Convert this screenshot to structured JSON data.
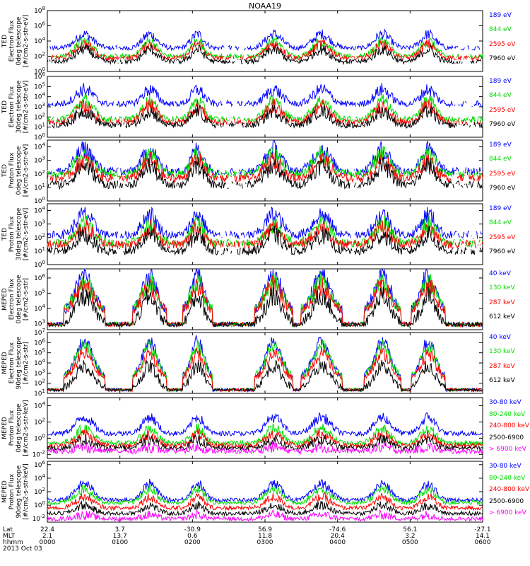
{
  "title": "NOAA19",
  "colors": {
    "black": "#000000",
    "red": "#ff0000",
    "green": "#00dd00",
    "blue": "#0000ff",
    "magenta": "#ff00ff"
  },
  "chart_data": {
    "type": "line",
    "x_time_labels": [
      "0000",
      "0100",
      "0200",
      "0300",
      "0400",
      "0500",
      "0600"
    ],
    "panels": [
      {
        "id": "ted-e-0",
        "ylabel": [
          "TED",
          "Electron Flux",
          "0deg telescope",
          "[#/cm2-s-str-eV]"
        ],
        "yticks": [
          "10^0",
          "10^2",
          "10^4",
          "10^6",
          "10^8"
        ],
        "ymin_exp": 0,
        "ymax_exp": 8,
        "series": [
          {
            "name": "7960 eV",
            "color": "black",
            "level": 1.3,
            "spread": 1.6
          },
          {
            "name": "2595 eV",
            "color": "red",
            "level": 1.8,
            "spread": 1.8
          },
          {
            "name": "844 eV",
            "color": "green",
            "level": 2.0,
            "spread": 2.0
          },
          {
            "name": "189 eV",
            "color": "blue",
            "level": 3.1,
            "spread": 1.8
          }
        ]
      },
      {
        "id": "ted-e-30",
        "ylabel": [
          "TED",
          "Electron Flux",
          "30deg telescope",
          "[#/cm2-s-str-eV]"
        ],
        "yticks": [
          "10^0",
          "10^1",
          "10^2",
          "10^3",
          "10^4",
          "10^5",
          "10^6"
        ],
        "ymin_exp": 0,
        "ymax_exp": 6,
        "series": [
          {
            "name": "7960 eV",
            "color": "black",
            "level": 1.2,
            "spread": 1.4
          },
          {
            "name": "2595 eV",
            "color": "red",
            "level": 1.5,
            "spread": 1.6
          },
          {
            "name": "844 eV",
            "color": "green",
            "level": 1.8,
            "spread": 1.8
          },
          {
            "name": "189 eV",
            "color": "blue",
            "level": 3.3,
            "spread": 1.4
          }
        ]
      },
      {
        "id": "ted-p-0",
        "ylabel": [
          "TED",
          "Proton Flux",
          "0deg telescope",
          "[#/cm2-s-str-eV]"
        ],
        "yticks": [
          "10^0",
          "10^1",
          "10^2",
          "10^3",
          "10^4"
        ],
        "ymin_exp": 0,
        "ymax_exp": 4.5,
        "series": [
          {
            "name": "7960 eV",
            "color": "black",
            "level": 1.2,
            "spread": 1.4
          },
          {
            "name": "2595 eV",
            "color": "red",
            "level": 1.7,
            "spread": 1.3
          },
          {
            "name": "844 eV",
            "color": "green",
            "level": 2.0,
            "spread": 1.4
          },
          {
            "name": "189 eV",
            "color": "blue",
            "level": 2.2,
            "spread": 1.6
          }
        ]
      },
      {
        "id": "ted-p-30",
        "ylabel": [
          "TED",
          "Proton Flux",
          "30deg telescope",
          "[#/cm2-s-str-eV]"
        ],
        "yticks": [
          "10^0",
          "10^1",
          "10^2",
          "10^3",
          "10^4"
        ],
        "ymin_exp": 0,
        "ymax_exp": 4.5,
        "series": [
          {
            "name": "7960 eV",
            "color": "black",
            "level": 1.0,
            "spread": 1.2
          },
          {
            "name": "2595 eV",
            "color": "red",
            "level": 1.5,
            "spread": 1.2
          },
          {
            "name": "844 eV",
            "color": "green",
            "level": 1.6,
            "spread": 1.4
          },
          {
            "name": "189 eV",
            "color": "blue",
            "level": 2.2,
            "spread": 1.5
          }
        ]
      },
      {
        "id": "meped-e-0",
        "ylabel": [
          "MEPED",
          "Electron Flux",
          "0deg telescope",
          "[#/cm2-s-str]"
        ],
        "yticks": [
          "10^3",
          "10^4",
          "10^5",
          "10^6"
        ],
        "ymin_exp": 2.6,
        "ymax_exp": 6.6,
        "series": [
          {
            "name": "612 keV",
            "color": "black",
            "level": 3.0,
            "spread": 1.8
          },
          {
            "name": "287 keV",
            "color": "red",
            "level": 3.8,
            "spread": 1.7
          },
          {
            "name": "130 keV",
            "color": "green",
            "level": 3.9,
            "spread": 1.8
          },
          {
            "name": "40 keV",
            "color": "blue",
            "level": 3.8,
            "spread": 2.4
          }
        ]
      },
      {
        "id": "meped-e-90",
        "ylabel": [
          "MEPED",
          "Electron Flux",
          "90deg telescope",
          "[#/cm2-s-str]"
        ],
        "yticks": [
          "10^1",
          "10^2",
          "10^3",
          "10^4",
          "10^5",
          "10^6",
          "10^7"
        ],
        "ymin_exp": 1,
        "ymax_exp": 7,
        "series": [
          {
            "name": "612 keV",
            "color": "black",
            "level": 1.5,
            "spread": 2.2
          },
          {
            "name": "287 keV",
            "color": "red",
            "level": 2.4,
            "spread": 2.5
          },
          {
            "name": "130 keV",
            "color": "green",
            "level": 2.6,
            "spread": 3.0
          },
          {
            "name": "40 keV",
            "color": "blue",
            "level": 2.6,
            "spread": 3.5
          }
        ]
      },
      {
        "id": "meped-p-0",
        "ylabel": [
          "MEPED",
          "Proton Flux",
          "0deg telescope",
          "[#/cm2-s-str-keV]"
        ],
        "yticks": [
          "10^-2",
          "10^0",
          "10^2",
          "10^4"
        ],
        "ymin_exp": -2.5,
        "ymax_exp": 5,
        "series": [
          {
            "name": "> 6900 keV",
            "color": "magenta",
            "level": -1.6,
            "spread": 0.5
          },
          {
            "name": "2500-6900",
            "color": "black",
            "level": -1.2,
            "spread": 1.0
          },
          {
            "name": "240-800 keV",
            "color": "red",
            "level": -0.9,
            "spread": 1.4
          },
          {
            "name": "80-240 keV",
            "color": "green",
            "level": -0.6,
            "spread": 1.8
          },
          {
            "name": "30-80 keV",
            "color": "blue",
            "level": 0.6,
            "spread": 2.0
          }
        ]
      },
      {
        "id": "meped-p-90",
        "ylabel": [
          "MEPED",
          "Proton Flux",
          "90deg telescope",
          "[#/cm2-s-str-keV]"
        ],
        "yticks": [
          "10^-2",
          "10^0",
          "10^2",
          "10^4",
          "10^6"
        ],
        "ymin_exp": -2.5,
        "ymax_exp": 6.5,
        "series": [
          {
            "name": "> 6900 keV",
            "color": "magenta",
            "level": -2.0,
            "spread": 0.6
          },
          {
            "name": "2500-6900",
            "color": "black",
            "level": -1.2,
            "spread": 1.2
          },
          {
            "name": "240-800 keV",
            "color": "red",
            "level": -0.4,
            "spread": 1.6
          },
          {
            "name": "80-240 keV",
            "color": "green",
            "level": 0.4,
            "spread": 2.0
          },
          {
            "name": "30-80 keV",
            "color": "blue",
            "level": 0.8,
            "spread": 2.4
          }
        ]
      }
    ],
    "footer_rows": [
      {
        "label": "Lat",
        "values": [
          "22.4",
          "3.7",
          "-30.9",
          "56.9",
          "-74.6",
          "56.1",
          "-27.1"
        ]
      },
      {
        "label": "MLT",
        "values": [
          "2.1",
          "13.7",
          "0.6",
          "11.8",
          "20.4",
          "3.2",
          "14.1"
        ]
      },
      {
        "label": "hhmm",
        "values": [
          "0000",
          "0100",
          "0200",
          "0300",
          "0400",
          "0500",
          "0600"
        ]
      }
    ],
    "date": "2013 Oct 03"
  }
}
